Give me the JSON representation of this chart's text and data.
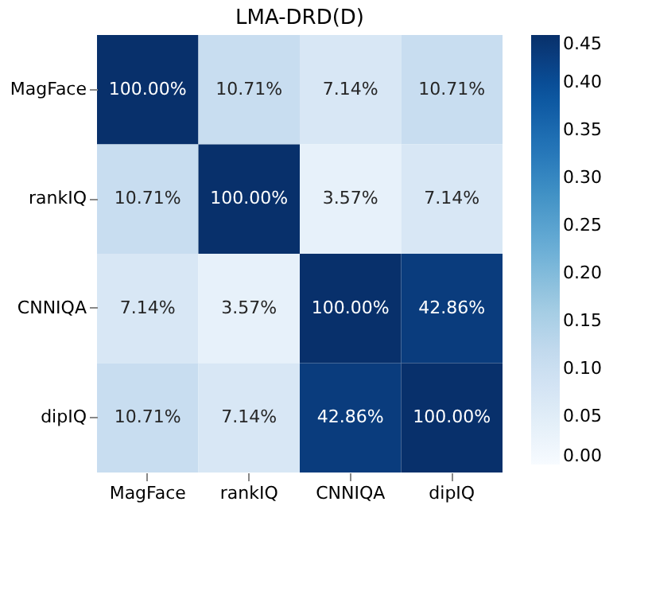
{
  "chart_data": {
    "type": "heatmap",
    "title": "LMA-DRD(D)",
    "categories": [
      "MagFace",
      "rankIQ",
      "CNNIQA",
      "dipIQ"
    ],
    "y_categories": [
      "MagFace",
      "rankIQ",
      "CNNIQA",
      "dipIQ"
    ],
    "cells": [
      [
        1.0,
        0.1071,
        0.0714,
        0.1071
      ],
      [
        0.1071,
        1.0,
        0.0357,
        0.0714
      ],
      [
        0.0714,
        0.0357,
        1.0,
        0.4286
      ],
      [
        0.1071,
        0.0714,
        0.4286,
        1.0
      ]
    ],
    "cell_labels": [
      [
        "100.00%",
        "10.71%",
        "7.14%",
        "10.71%"
      ],
      [
        "10.71%",
        "100.00%",
        "3.57%",
        "7.14%"
      ],
      [
        "7.14%",
        "3.57%",
        "100.00%",
        "42.86%"
      ],
      [
        "10.71%",
        "7.14%",
        "42.86%",
        "100.00%"
      ]
    ],
    "clim": [
      0,
      0.45
    ],
    "cticks": [
      {
        "value": 0,
        "label": "0.00"
      },
      0.05,
      {
        "value": 0.1,
        "label": "0.10"
      },
      0.15,
      {
        "value": 0.2,
        "label": "0.20"
      },
      0.25,
      {
        "value": 0.3,
        "label": "0.30"
      },
      0.35,
      {
        "value": 0.4,
        "label": "0.40"
      },
      0.45
    ]
  }
}
